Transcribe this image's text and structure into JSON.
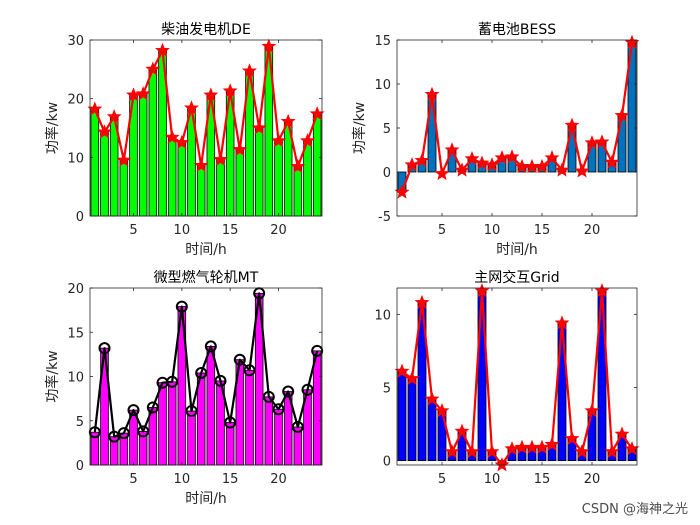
{
  "watermark": "CSDN @海神之光",
  "chart_data": [
    {
      "type": "bar",
      "title": "柴油发电机DE",
      "xlabel": "时间/h",
      "ylabel": "功率/kw",
      "x": [
        1,
        2,
        3,
        4,
        5,
        6,
        7,
        8,
        9,
        10,
        11,
        12,
        13,
        14,
        15,
        16,
        17,
        18,
        19,
        20,
        21,
        22,
        23,
        24
      ],
      "values": [
        18.2,
        14.3,
        16.9,
        9.5,
        20.6,
        20.8,
        25.0,
        28.2,
        13.4,
        12.5,
        18.4,
        8.6,
        20.6,
        9.6,
        21.3,
        11.3,
        24.7,
        15.0,
        28.9,
        12.8,
        16.1,
        8.4,
        12.8,
        17.4
      ],
      "xlim": [
        0.5,
        24.5
      ],
      "ylim": [
        0,
        30
      ],
      "xticks": [
        5,
        10,
        15,
        20
      ],
      "yticks": [
        0,
        10,
        20,
        30
      ],
      "bar_color": "#00ff00",
      "line_color": "#ff0000",
      "marker": "star"
    },
    {
      "type": "bar",
      "title": "蓄电池BESS",
      "xlabel": "时间/h",
      "ylabel": "功率/kw",
      "x": [
        1,
        2,
        3,
        4,
        5,
        6,
        7,
        8,
        9,
        10,
        11,
        12,
        13,
        14,
        15,
        16,
        17,
        18,
        19,
        20,
        21,
        22,
        23,
        24
      ],
      "values": [
        -2.3,
        0.8,
        1.3,
        8.8,
        -0.2,
        2.5,
        0.2,
        1.5,
        1.0,
        0.8,
        1.6,
        1.7,
        0.6,
        0.6,
        0.6,
        1.6,
        0.2,
        5.3,
        0.1,
        3.3,
        3.4,
        1.1,
        6.4,
        14.7
      ],
      "xlim": [
        0.5,
        24.5
      ],
      "ylim": [
        -5,
        15
      ],
      "xticks": [
        5,
        10,
        15,
        20
      ],
      "yticks": [
        -5,
        0,
        5,
        10,
        15
      ],
      "bar_color": "#0072bd",
      "line_color": "#ff0000",
      "marker": "star"
    },
    {
      "type": "bar",
      "title": "微型燃气轮机MT",
      "xlabel": "时间/h",
      "ylabel": "功率/kw",
      "x": [
        1,
        2,
        3,
        4,
        5,
        6,
        7,
        8,
        9,
        10,
        11,
        12,
        13,
        14,
        15,
        16,
        17,
        18,
        19,
        20,
        21,
        22,
        23,
        24
      ],
      "values": [
        3.7,
        13.2,
        3.2,
        3.6,
        6.2,
        3.8,
        6.5,
        9.3,
        9.4,
        17.9,
        6.1,
        10.4,
        13.4,
        9.5,
        4.8,
        11.9,
        10.7,
        19.4,
        7.7,
        6.3,
        8.3,
        4.3,
        8.5,
        12.9
      ],
      "xlim": [
        0.5,
        24.5
      ],
      "ylim": [
        0,
        20
      ],
      "xticks": [
        5,
        10,
        15,
        20
      ],
      "yticks": [
        0,
        5,
        10,
        15,
        20
      ],
      "bar_color": "#ff00ff",
      "line_color": "#000000",
      "marker": "circle"
    },
    {
      "type": "bar",
      "title": "主网交互Grid",
      "xlabel": "",
      "ylabel": "",
      "x": [
        1,
        2,
        3,
        4,
        5,
        6,
        7,
        8,
        9,
        10,
        11,
        12,
        13,
        14,
        15,
        16,
        17,
        18,
        19,
        20,
        21,
        22,
        23,
        24
      ],
      "values": [
        6.1,
        5.6,
        10.8,
        4.2,
        3.4,
        0.6,
        2.0,
        0.6,
        11.6,
        0.6,
        -0.3,
        0.8,
        0.9,
        0.9,
        0.9,
        1.1,
        9.4,
        1.5,
        0.6,
        3.4,
        11.6,
        0.6,
        1.8,
        0.8
      ],
      "xlim": [
        0.5,
        24.5
      ],
      "ylim": [
        -0.3,
        11.8
      ],
      "xticks": [
        5,
        10,
        15,
        20
      ],
      "yticks": [
        0,
        5,
        10
      ],
      "bar_color": "#0000ff",
      "line_color": "#ff0000",
      "marker": "star"
    }
  ]
}
